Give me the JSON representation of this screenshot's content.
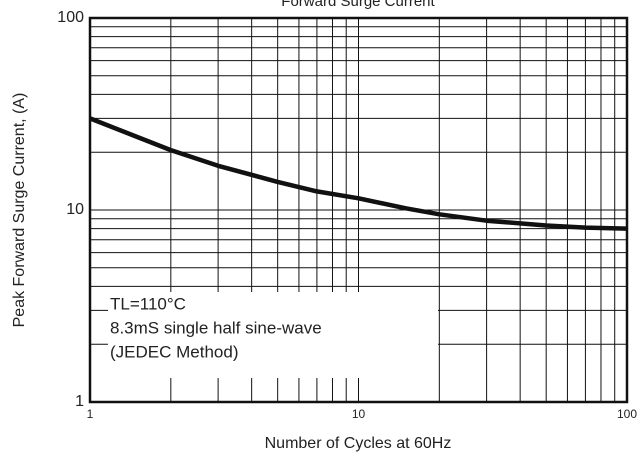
{
  "chart_data": {
    "type": "line",
    "title": "Forward Surge Current",
    "x_label": "Number of Cycles at 60Hz",
    "y_label": "Peak Forward Surge Current, (A)",
    "xlog": true,
    "ylog": true,
    "grid": true,
    "minor_grid": true,
    "xlim": [
      1,
      100
    ],
    "xticks": [
      1,
      10,
      100
    ],
    "ylim": [
      1,
      100
    ],
    "yticks": [
      1,
      10,
      100
    ],
    "x": [
      1,
      1.5,
      2,
      3,
      5,
      7,
      10,
      15,
      20,
      30,
      50,
      70,
      100
    ],
    "series": [
      {
        "color": "#111111",
        "values": [
          30,
          24,
          20.5,
          17,
          14,
          12.5,
          11.5,
          10.2,
          9.5,
          8.8,
          8.3,
          8.1,
          8.0
        ]
      }
    ],
    "annotations": [
      "TL=110°C",
      "8.3mS single half sine-wave",
      "(JEDEC Method)"
    ]
  }
}
